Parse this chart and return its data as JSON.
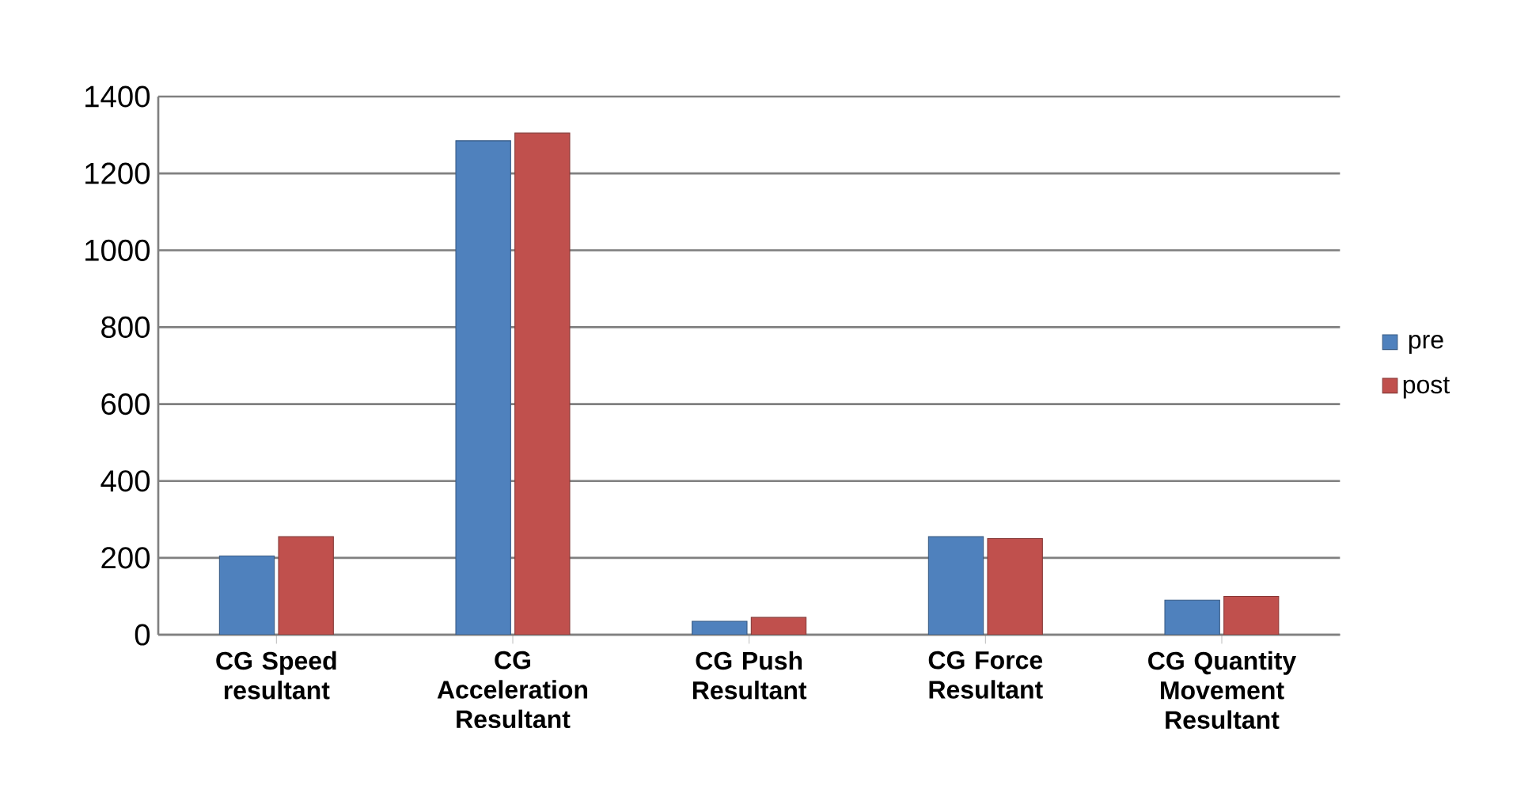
{
  "chart_data": {
    "type": "bar",
    "categories": [
      "CG Speed resultant",
      "CG Acceleration Resultant",
      "CG Push Resultant",
      "CG Force Resultant",
      "CG Quantity Movement Resultant"
    ],
    "series": [
      {
        "name": "pre",
        "color": "#4f81bd",
        "values": [
          205,
          1285,
          35,
          255,
          90
        ]
      },
      {
        "name": "post",
        "color": "#c0504d",
        "values": [
          255,
          1305,
          45,
          250,
          100
        ]
      }
    ],
    "ylim": [
      0,
      1400
    ],
    "yticks": [
      0,
      200,
      400,
      600,
      800,
      1000,
      1200,
      1400
    ],
    "grid": "y",
    "legend": "right"
  }
}
